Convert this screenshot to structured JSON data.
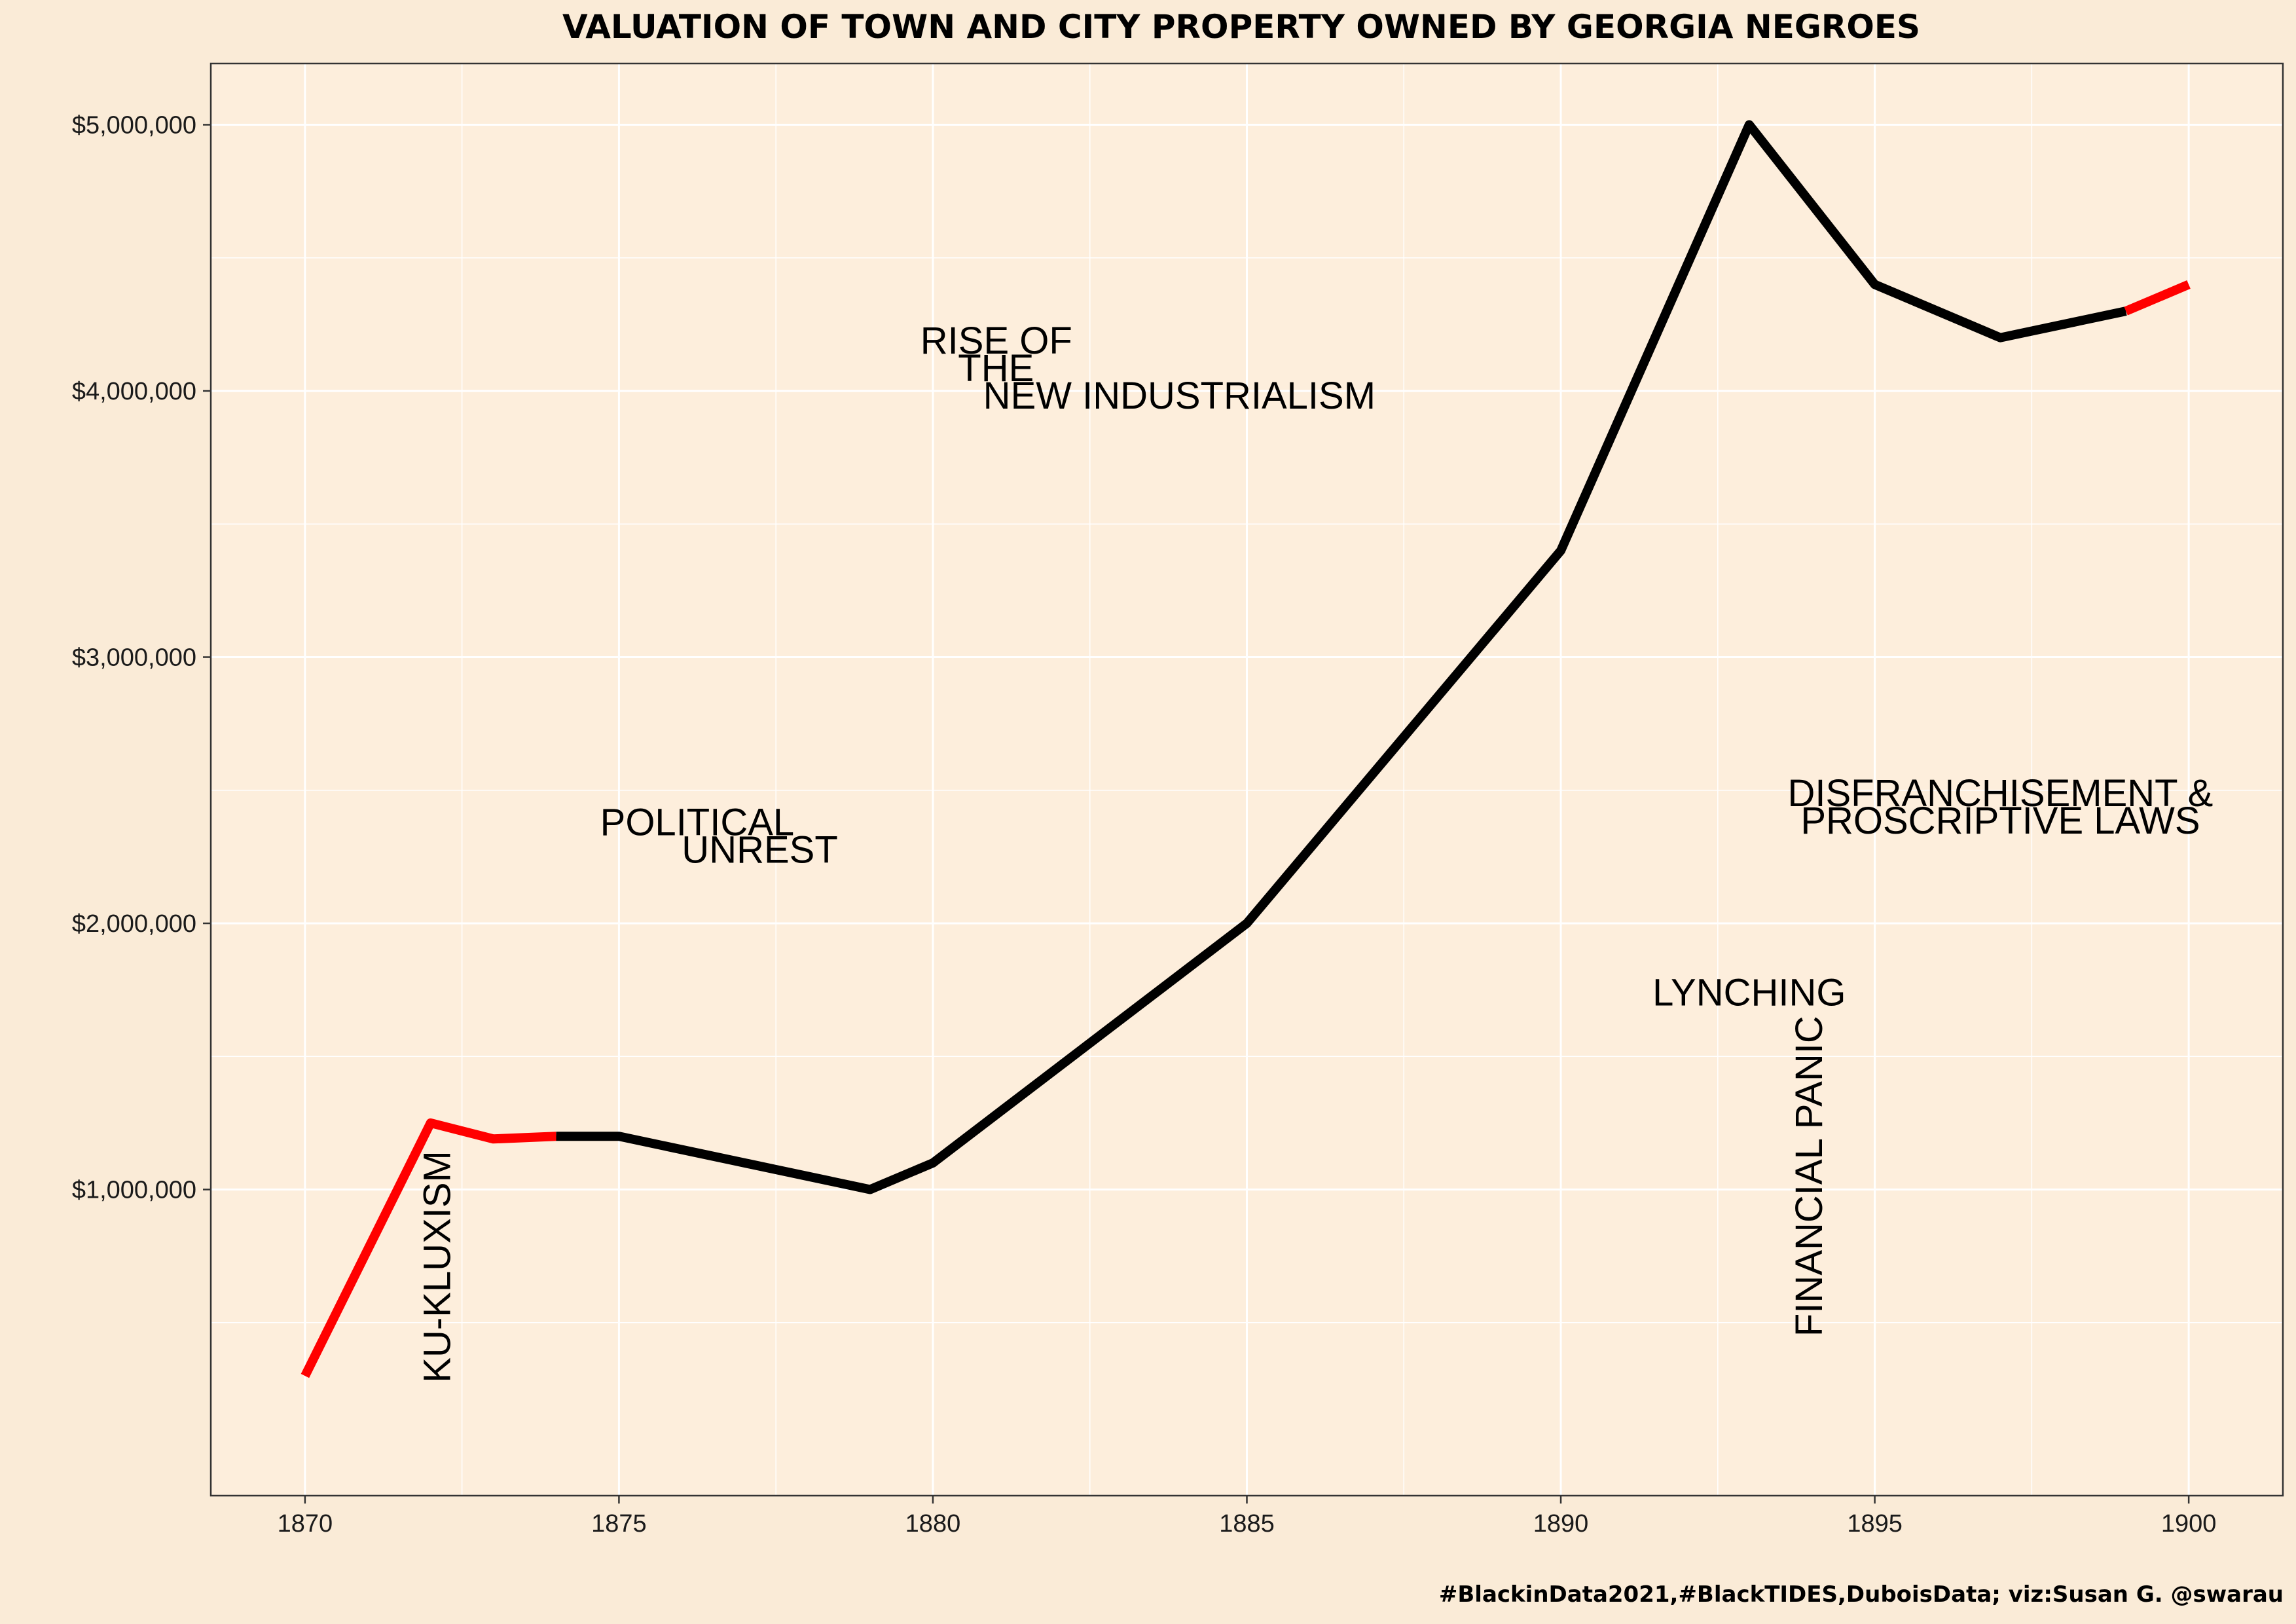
{
  "chart_data": {
    "type": "line",
    "title": "VALUATION OF TOWN AND CITY PROPERTY OWNED BY GEORGIA NEGROES",
    "caption": "#BlackinData2021,#BlackTIDES,DuboisData; viz:Susan G. @swarau",
    "xlabel": "",
    "ylabel": "",
    "xlim": [
      1868.5,
      1901.5
    ],
    "ylim": [
      -150000,
      5230000
    ],
    "x_ticks": [
      1870,
      1875,
      1880,
      1885,
      1890,
      1895,
      1900
    ],
    "x_tick_labels": [
      "1870",
      "1875",
      "1880",
      "1885",
      "1890",
      "1895",
      "1900"
    ],
    "y_ticks": [
      1000000,
      2000000,
      3000000,
      4000000,
      5000000
    ],
    "y_tick_labels": [
      "$1,000,000",
      "$2,000,000",
      "$3,000,000",
      "$4,000,000",
      "$5,000,000"
    ],
    "grid": true,
    "line_colors": {
      "main": "#000000",
      "highlight": "#ff0000"
    },
    "colors": {
      "background": "#faebd7",
      "panel": "#fdeedc",
      "grid": "#ffffff"
    },
    "series": [
      {
        "color": "#ff0000",
        "points": [
          {
            "x": 1870,
            "y": 300000
          },
          {
            "x": 1872,
            "y": 1250000
          },
          {
            "x": 1873,
            "y": 1190000
          },
          {
            "x": 1874,
            "y": 1200000
          }
        ]
      },
      {
        "color": "#000000",
        "points": [
          {
            "x": 1874,
            "y": 1200000
          },
          {
            "x": 1875,
            "y": 1200000
          },
          {
            "x": 1879,
            "y": 1000000
          },
          {
            "x": 1880,
            "y": 1100000
          },
          {
            "x": 1885,
            "y": 2000000
          },
          {
            "x": 1890,
            "y": 3400000
          },
          {
            "x": 1893,
            "y": 5000000
          },
          {
            "x": 1895,
            "y": 4400000
          },
          {
            "x": 1897,
            "y": 4200000
          },
          {
            "x": 1899,
            "y": 4300000
          }
        ]
      },
      {
        "color": "#ff0000",
        "points": [
          {
            "x": 1899,
            "y": 4300000
          },
          {
            "x": 1900,
            "y": 4400000
          }
        ]
      }
    ],
    "annotations": [
      {
        "name": "annotation-ku-kluxism",
        "lines": [
          "KU-KLUXISM"
        ],
        "x": 1872.1,
        "y": 710000,
        "rotate": -90,
        "anchor": "middle"
      },
      {
        "name": "annotation-political-unrest",
        "lines": [
          "POLITICAL",
          "UNREST"
        ],
        "x": 1874.7,
        "y": 2380000,
        "anchor": "start",
        "line_indents": [
          0,
          1.3
        ]
      },
      {
        "name": "annotation-rise-of-new-industrialism",
        "lines": [
          "RISE OF",
          "THE",
          "NEW INDUSTRIALISM"
        ],
        "x": 1879.8,
        "y": 4190000,
        "anchor": "start",
        "line_indents": [
          0,
          0.6,
          1.0
        ]
      },
      {
        "name": "annotation-lynching",
        "lines": [
          "LYNCHING"
        ],
        "x": 1893.0,
        "y": 1740000,
        "anchor": "middle"
      },
      {
        "name": "annotation-financial-panic",
        "lines": [
          "FINANCIAL PANIC"
        ],
        "x": 1893.95,
        "y": 1050000,
        "rotate": -90,
        "anchor": "middle"
      },
      {
        "name": "annotation-disfranchisement",
        "lines": [
          "DISFRANCHISEMENT &",
          "PROSCRIPTIVE LAWS"
        ],
        "x": 1897.0,
        "y": 2490000,
        "anchor": "middle"
      }
    ]
  }
}
